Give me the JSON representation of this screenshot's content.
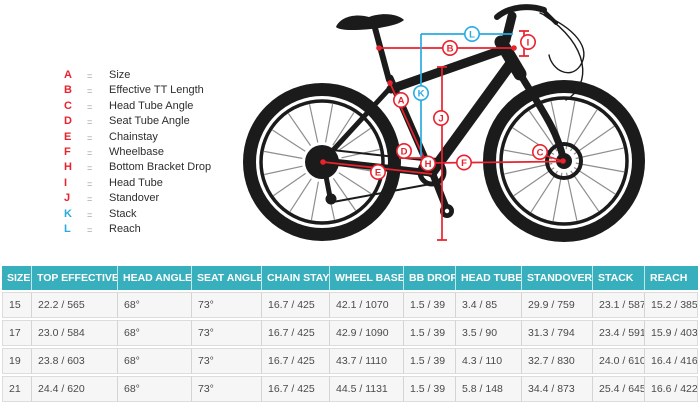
{
  "colors": {
    "red": "#e8232e",
    "blue": "#29abe2",
    "teal": "#38afbc",
    "bike": "#1b1b1b"
  },
  "legend": {
    "equals": "=",
    "items": [
      {
        "letter": "A",
        "label": "Size"
      },
      {
        "letter": "B",
        "label": "Effective TT Length"
      },
      {
        "letter": "C",
        "label": "Head Tube Angle"
      },
      {
        "letter": "D",
        "label": "Seat Tube Angle"
      },
      {
        "letter": "E",
        "label": "Chainstay"
      },
      {
        "letter": "F",
        "label": "Wheelbase"
      },
      {
        "letter": "H",
        "label": "Bottom Bracket Drop"
      },
      {
        "letter": "I",
        "label": "Head Tube"
      },
      {
        "letter": "J",
        "label": "Standover"
      },
      {
        "letter": "K",
        "label": "Stack"
      },
      {
        "letter": "L",
        "label": "Reach"
      }
    ]
  },
  "table": {
    "columns": [
      "SIZE",
      "TOP EFFECTIVE",
      "HEAD ANGLE",
      "SEAT ANGLE",
      "CHAIN STAY",
      "WHEEL BASE",
      "BB DROP",
      "HEAD TUBE",
      "STANDOVER",
      "STACK",
      "REACH"
    ],
    "rows": [
      [
        "15",
        "22.2 / 565",
        "68°",
        "73°",
        "16.7 / 425",
        "42.1 / 1070",
        "1.5 / 39",
        "3.4 / 85",
        "29.9 / 759",
        "23.1 / 587",
        "15.2 / 385"
      ],
      [
        "17",
        "23.0 / 584",
        "68°",
        "73°",
        "16.7 / 425",
        "42.9 / 1090",
        "1.5 / 39",
        "3.5 / 90",
        "31.3 / 794",
        "23.4 / 591",
        "15.9 / 403"
      ],
      [
        "19",
        "23.8 / 603",
        "68°",
        "73°",
        "16.7 / 425",
        "43.7 / 1110",
        "1.5 / 39",
        "4.3 / 110",
        "32.7 / 830",
        "24.0 / 610",
        "16.4 / 416"
      ],
      [
        "21",
        "24.4 / 620",
        "68°",
        "73°",
        "16.7 / 425",
        "44.5 / 1131",
        "1.5 / 39",
        "5.8 / 148",
        "34.4 / 873",
        "25.4 / 645",
        "16.6 / 422"
      ]
    ]
  }
}
